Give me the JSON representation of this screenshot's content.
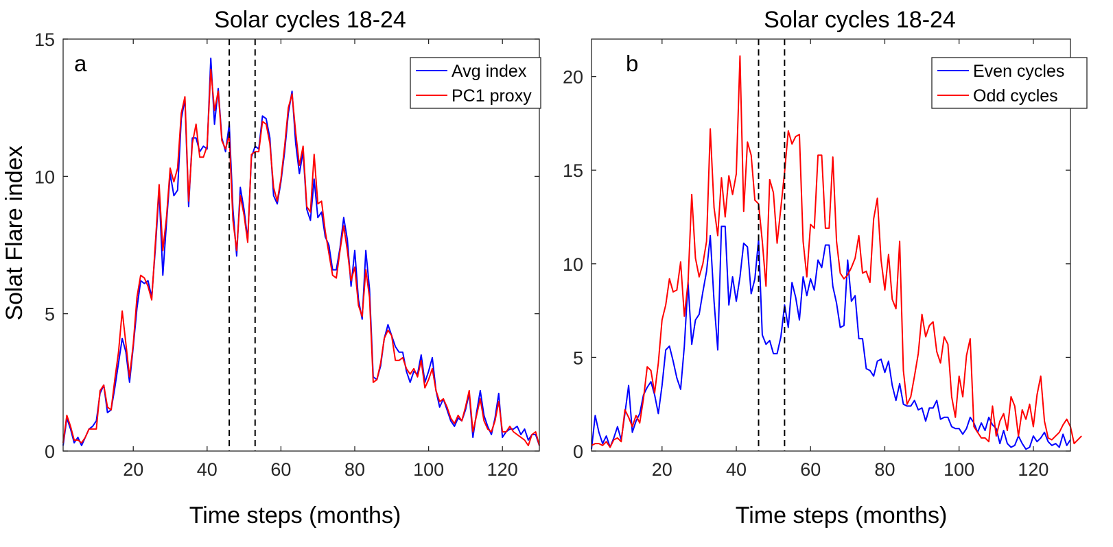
{
  "colors": {
    "blue": "#0000ff",
    "red": "#ff0000",
    "axis": "#262626",
    "background": "#ffffff"
  },
  "chart_data": [
    {
      "type": "line",
      "panel": "a",
      "title": "Solar cycles 18-24",
      "xlabel": "Time steps (months)",
      "ylabel": "Solat Flare index",
      "xlim": [
        1,
        130
      ],
      "ylim": [
        0,
        15
      ],
      "xticks": [
        20,
        40,
        60,
        80,
        100,
        120
      ],
      "yticks": [
        0,
        5,
        10,
        15
      ],
      "vlines": [
        46,
        53
      ],
      "legend_position": "top-right",
      "series": [
        {
          "name": "Avg index",
          "color": "#0000ff",
          "values": [
            0.2,
            1.2,
            0.8,
            0.3,
            0.5,
            0.2,
            0.5,
            0.8,
            0.9,
            1.1,
            2.1,
            2.4,
            1.4,
            1.5,
            2.3,
            3.2,
            4.1,
            3.6,
            2.5,
            3.8,
            5.2,
            6.2,
            6.1,
            6.2,
            5.6,
            7.4,
            9.5,
            6.4,
            8.3,
            10.1,
            9.3,
            9.5,
            12.1,
            12.8,
            8.9,
            11.4,
            11.4,
            10.9,
            11.1,
            11.0,
            14.3,
            11.9,
            13.2,
            11.4,
            10.9,
            11.9,
            8.8,
            7.1,
            9.6,
            8.8,
            7.7,
            10.7,
            11.1,
            11.0,
            12.2,
            12.1,
            11.4,
            9.3,
            9.0,
            9.8,
            10.9,
            12.3,
            13.1,
            11.2,
            10.1,
            10.9,
            8.8,
            8.4,
            9.9,
            8.5,
            8.7,
            7.8,
            7.5,
            6.6,
            6.6,
            7.4,
            8.5,
            7.7,
            6.0,
            7.3,
            5.5,
            4.8,
            7.3,
            5.9,
            2.7,
            2.6,
            3.1,
            4.1,
            4.6,
            4.2,
            3.8,
            3.6,
            3.6,
            2.9,
            2.5,
            2.9,
            2.8,
            3.5,
            2.5,
            2.9,
            3.4,
            2.2,
            1.6,
            1.9,
            1.5,
            1.1,
            0.9,
            1.2,
            1.1,
            1.5,
            2.1,
            0.5,
            1.4,
            2.2,
            1.3,
            0.9,
            0.6,
            1.2,
            2.1,
            0.5,
            0.7,
            0.8,
            0.8,
            0.9,
            0.6,
            0.8,
            0.4,
            0.6,
            0.6,
            0.2
          ]
        },
        {
          "name": "PC1 proxy",
          "color": "#ff0000",
          "values": [
            0.3,
            1.3,
            0.9,
            0.4,
            0.4,
            0.3,
            0.5,
            0.8,
            0.8,
            0.8,
            2.2,
            2.4,
            1.6,
            1.5,
            2.6,
            3.6,
            5.1,
            3.9,
            2.7,
            3.9,
            5.6,
            6.4,
            6.3,
            6.0,
            5.5,
            7.6,
            9.7,
            7.3,
            8.5,
            10.3,
            9.8,
            10.3,
            12.3,
            12.9,
            9.1,
            11.2,
            11.9,
            10.7,
            10.7,
            11.1,
            13.9,
            12.4,
            13.1,
            11.3,
            11.0,
            11.5,
            8.4,
            7.3,
            9.3,
            8.6,
            7.6,
            10.8,
            10.9,
            10.9,
            12.0,
            11.9,
            11.2,
            9.6,
            9.1,
            9.9,
            11.1,
            12.5,
            13.0,
            11.6,
            10.4,
            11.1,
            8.9,
            8.7,
            10.8,
            9.0,
            9.1,
            8.0,
            7.2,
            6.4,
            6.3,
            7.3,
            8.2,
            7.3,
            6.2,
            6.7,
            5.3,
            4.9,
            6.6,
            5.6,
            2.5,
            2.6,
            3.2,
            4.1,
            4.4,
            4.2,
            3.3,
            3.3,
            3.4,
            3.0,
            2.8,
            3.0,
            2.7,
            3.3,
            2.3,
            2.6,
            3.0,
            2.2,
            1.8,
            1.9,
            1.6,
            1.2,
            1.0,
            1.3,
            1.1,
            1.6,
            2.2,
            0.7,
            1.3,
            1.9,
            1.1,
            0.8,
            0.7,
            1.1,
            1.8,
            0.7,
            0.7,
            0.9,
            0.7,
            0.6,
            0.5,
            0.4,
            0.2,
            0.6,
            0.7,
            0.2
          ]
        }
      ]
    },
    {
      "type": "line",
      "panel": "b",
      "title": "Solar cycles 18-24",
      "xlabel": "Time steps (months)",
      "ylabel": "",
      "xlim": [
        1,
        130
      ],
      "ylim": [
        0,
        22
      ],
      "xticks": [
        20,
        40,
        60,
        80,
        100,
        120
      ],
      "yticks": [
        0,
        5,
        10,
        15,
        20
      ],
      "vlines": [
        46,
        53
      ],
      "legend_position": "top-right",
      "series": [
        {
          "name": "Even cycles",
          "color": "#0000ff",
          "values": [
            0.1,
            1.9,
            1.0,
            0.4,
            0.8,
            0.2,
            0.7,
            1.3,
            0.6,
            2.0,
            3.5,
            1.0,
            1.6,
            2.0,
            3.0,
            3.4,
            3.7,
            3.0,
            2.0,
            3.5,
            5.4,
            5.6,
            4.8,
            3.9,
            3.3,
            5.6,
            9.0,
            5.7,
            7.0,
            7.3,
            8.5,
            9.6,
            11.5,
            8.0,
            5.4,
            12.0,
            12.0,
            7.8,
            9.3,
            8.0,
            9.3,
            11.1,
            10.9,
            8.4,
            9.2,
            11.3,
            6.2,
            5.7,
            5.9,
            5.2,
            5.2,
            6.1,
            7.8,
            6.6,
            9.0,
            8.2,
            7.0,
            9.3,
            8.3,
            9.2,
            8.6,
            10.2,
            9.8,
            11.0,
            11.0,
            8.8,
            7.9,
            6.6,
            6.7,
            10.2,
            8.0,
            8.3,
            6.0,
            6.0,
            4.4,
            4.3,
            4.0,
            4.8,
            4.9,
            4.2,
            4.8,
            3.5,
            2.7,
            3.6,
            2.5,
            2.4,
            2.4,
            2.7,
            2.2,
            2.3,
            1.6,
            2.3,
            2.3,
            2.7,
            1.7,
            1.8,
            1.8,
            1.3,
            1.2,
            1.2,
            0.9,
            1.2,
            1.8,
            1.5,
            1.0,
            1.5,
            1.1,
            1.8,
            1.4,
            1.2,
            0.4,
            1.1,
            0.4,
            0.2,
            0.3,
            0.8,
            0.4,
            0.1,
            0.2,
            0.8,
            0.5,
            0.7,
            1.0,
            0.5,
            0.3,
            0.4,
            0.2,
            0.9,
            0.3,
            0.6
          ]
        },
        {
          "name": "Odd cycles",
          "color": "#ff0000",
          "values": [
            0.3,
            0.4,
            0.4,
            0.3,
            0.5,
            0.2,
            0.6,
            0.7,
            0.5,
            2.2,
            1.8,
            1.3,
            1.9,
            1.5,
            2.8,
            4.5,
            4.3,
            3.1,
            4.7,
            7.0,
            7.8,
            9.2,
            8.5,
            8.6,
            10.1,
            7.2,
            9.0,
            13.7,
            10.3,
            9.3,
            10.0,
            11.2,
            17.2,
            13.0,
            11.5,
            14.6,
            12.5,
            14.7,
            13.7,
            14.8,
            21.1,
            12.8,
            16.5,
            15.8,
            13.4,
            13.2,
            11.2,
            8.8,
            14.5,
            13.8,
            11.1,
            13.0,
            14.9,
            17.1,
            16.4,
            16.8,
            16.9,
            11.2,
            9.3,
            12.1,
            11.9,
            15.8,
            15.8,
            11.9,
            11.9,
            15.7,
            11.2,
            9.5,
            9.2,
            9.4,
            9.8,
            10.3,
            11.5,
            9.5,
            9.6,
            9.0,
            12.4,
            13.5,
            10.2,
            8.6,
            10.5,
            8.1,
            7.6,
            11.2,
            4.3,
            2.5,
            2.9,
            4.0,
            5.2,
            7.3,
            6.1,
            6.7,
            6.9,
            5.3,
            4.7,
            6.1,
            5.7,
            2.9,
            1.8,
            4.0,
            2.9,
            5.1,
            6.0,
            1.3,
            1.0,
            0.7,
            0.7,
            0.5,
            2.4,
            0.8,
            1.6,
            2.0,
            1.1,
            2.9,
            2.4,
            0.8,
            2.2,
            1.7,
            2.5,
            1.3,
            3.0,
            4.0,
            1.6,
            0.7,
            0.6,
            0.8,
            1.0,
            1.4,
            1.7,
            1.3,
            0.4,
            0.6,
            0.8
          ]
        }
      ]
    }
  ]
}
